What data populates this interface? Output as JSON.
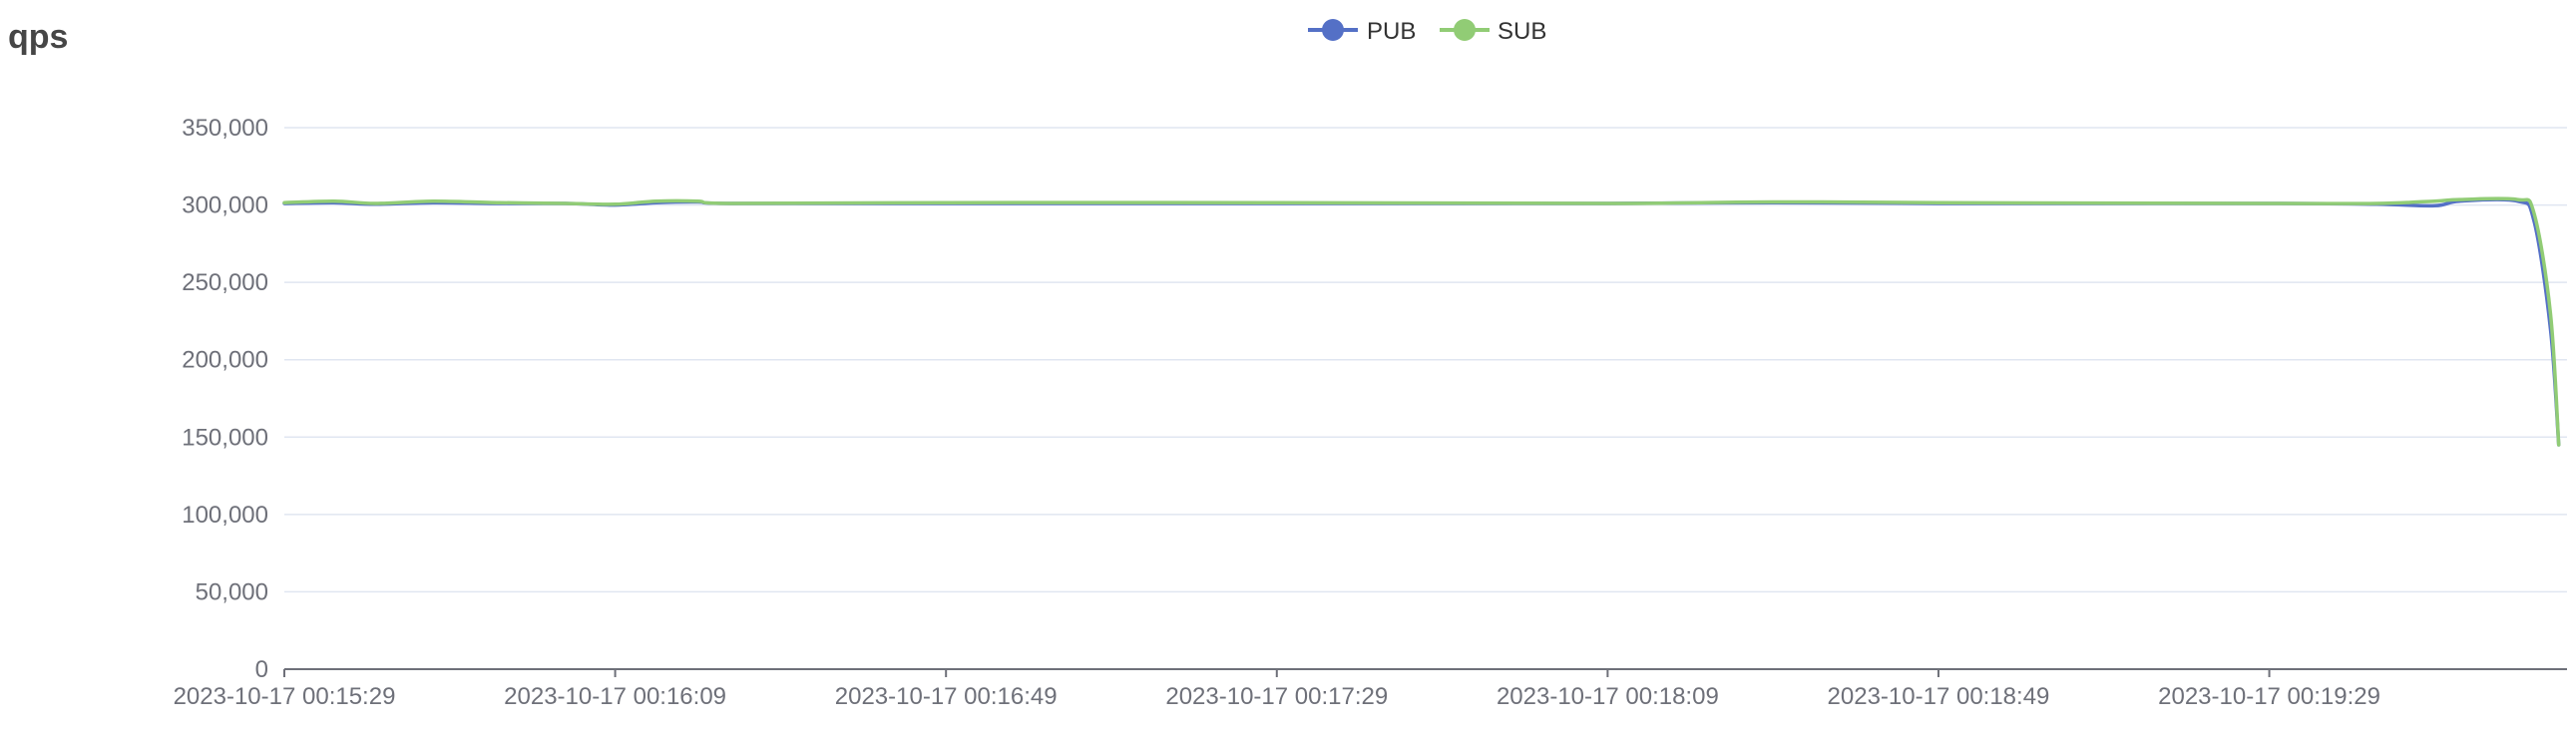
{
  "chart_data": {
    "type": "line",
    "title": "qps",
    "xlabel": "",
    "ylabel": "",
    "legend_position": "top-center",
    "grid": true,
    "ylim": [
      0,
      350000
    ],
    "y_ticks": [
      0,
      50000,
      100000,
      150000,
      200000,
      250000,
      300000,
      350000
    ],
    "y_tick_labels": [
      "0",
      "50,000",
      "100,000",
      "150,000",
      "200,000",
      "250,000",
      "300,000",
      "350,000"
    ],
    "x_tick_labels": [
      "2023-10-17 00:15:29",
      "2023-10-17 00:16:09",
      "2023-10-17 00:16:49",
      "2023-10-17 00:17:29",
      "2023-10-17 00:18:09",
      "2023-10-17 00:18:49",
      "2023-10-17 00:19:29"
    ],
    "x_start": "2023-10-17 00:15:29",
    "x_end": "2023-10-17 00:20:04",
    "x_step_seconds": 1,
    "series": [
      {
        "name": "PUB",
        "color": "#5470c6",
        "points": [
          [
            "2023-10-17 00:15:29",
            301000
          ],
          [
            "2023-10-17 00:15:35",
            301500
          ],
          [
            "2023-10-17 00:15:40",
            300500
          ],
          [
            "2023-10-17 00:15:47",
            301500
          ],
          [
            "2023-10-17 00:15:55",
            301000
          ],
          [
            "2023-10-17 00:16:03",
            301000
          ],
          [
            "2023-10-17 00:16:09",
            300000
          ],
          [
            "2023-10-17 00:16:14",
            301500
          ],
          [
            "2023-10-17 00:16:19",
            302000
          ],
          [
            "2023-10-17 00:16:23",
            301000
          ],
          [
            "2023-10-17 00:16:49",
            301000
          ],
          [
            "2023-10-17 00:17:29",
            301000
          ],
          [
            "2023-10-17 00:18:09",
            301000
          ],
          [
            "2023-10-17 00:18:29",
            301500
          ],
          [
            "2023-10-17 00:18:49",
            301000
          ],
          [
            "2023-10-17 00:19:29",
            301000
          ],
          [
            "2023-10-17 00:19:42",
            300500
          ],
          [
            "2023-10-17 00:19:49",
            299500
          ],
          [
            "2023-10-17 00:19:52",
            302500
          ],
          [
            "2023-10-17 00:19:59",
            302500
          ],
          [
            "2023-10-17 00:20:01",
            290000
          ],
          [
            "2023-10-17 00:20:03",
            220000
          ],
          [
            "2023-10-17 00:20:04",
            145000
          ]
        ]
      },
      {
        "name": "SUB",
        "color": "#91cc75",
        "points": [
          [
            "2023-10-17 00:15:29",
            301500
          ],
          [
            "2023-10-17 00:15:35",
            302500
          ],
          [
            "2023-10-17 00:15:40",
            301000
          ],
          [
            "2023-10-17 00:15:47",
            302500
          ],
          [
            "2023-10-17 00:15:55",
            301500
          ],
          [
            "2023-10-17 00:16:03",
            301000
          ],
          [
            "2023-10-17 00:16:09",
            300500
          ],
          [
            "2023-10-17 00:16:14",
            302500
          ],
          [
            "2023-10-17 00:16:19",
            302500
          ],
          [
            "2023-10-17 00:16:23",
            301000
          ],
          [
            "2023-10-17 00:16:49",
            301500
          ],
          [
            "2023-10-17 00:17:29",
            301500
          ],
          [
            "2023-10-17 00:18:09",
            301000
          ],
          [
            "2023-10-17 00:18:29",
            302000
          ],
          [
            "2023-10-17 00:18:49",
            301500
          ],
          [
            "2023-10-17 00:19:29",
            301000
          ],
          [
            "2023-10-17 00:19:42",
            301000
          ],
          [
            "2023-10-17 00:19:49",
            302500
          ],
          [
            "2023-10-17 00:19:52",
            303500
          ],
          [
            "2023-10-17 00:19:59",
            303500
          ],
          [
            "2023-10-17 00:20:01",
            295000
          ],
          [
            "2023-10-17 00:20:03",
            230000
          ],
          [
            "2023-10-17 00:20:04",
            145000
          ]
        ]
      }
    ]
  },
  "colors": {
    "axis_line": "#6e7079",
    "grid_line": "#e0e6f1",
    "tick_label": "#6e7079",
    "title": "#464646",
    "legend_text": "#333333"
  }
}
